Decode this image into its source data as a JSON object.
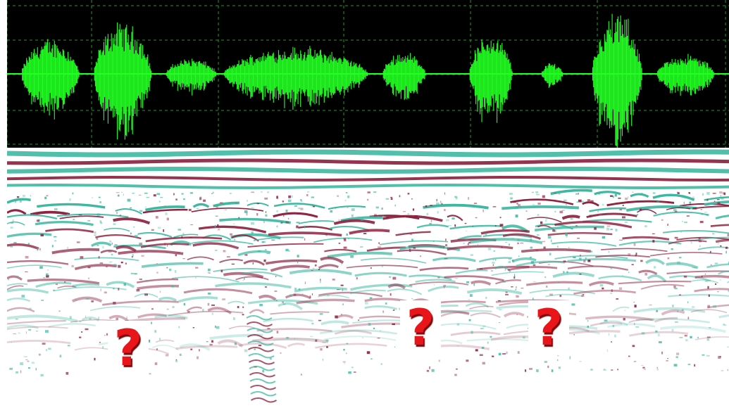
{
  "waveform": {
    "background": "#000000",
    "grid_color": "#1f9a1f",
    "signal_color": "#22ff22",
    "segments": [
      {
        "start": 0.02,
        "end": 0.1,
        "amp": 0.55
      },
      {
        "start": 0.12,
        "end": 0.2,
        "amp": 0.8
      },
      {
        "start": 0.22,
        "end": 0.29,
        "amp": 0.25
      },
      {
        "start": 0.3,
        "end": 0.5,
        "amp": 0.42
      },
      {
        "start": 0.52,
        "end": 0.58,
        "amp": 0.35
      },
      {
        "start": 0.64,
        "end": 0.7,
        "amp": 0.62
      },
      {
        "start": 0.74,
        "end": 0.77,
        "amp": 0.18
      },
      {
        "start": 0.81,
        "end": 0.88,
        "amp": 0.95
      },
      {
        "start": 0.9,
        "end": 0.98,
        "amp": 0.3
      }
    ]
  },
  "radargram": {
    "band_cyan": "#3fb8a2",
    "band_red": "#8a1e3c",
    "background": "#ffffff"
  },
  "markers": [
    {
      "label": "?"
    },
    {
      "label": "?"
    },
    {
      "label": "?"
    }
  ]
}
